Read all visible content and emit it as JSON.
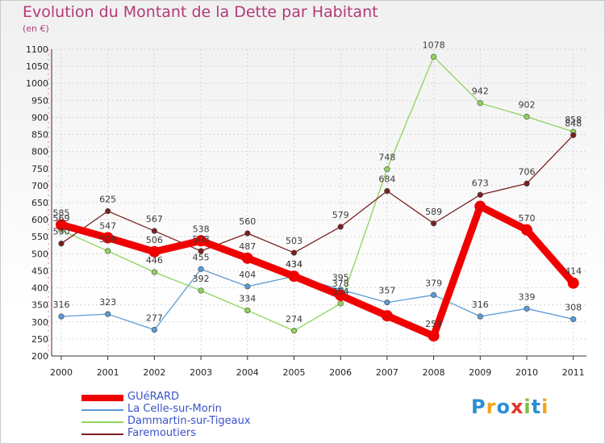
{
  "title": "Evolution du Montant de la Dette par Habitant",
  "subtitle": "(en €)",
  "logo_letters": [
    {
      "ch": "P",
      "color": "#2a8fd4"
    },
    {
      "ch": "r",
      "color": "#f2a51a"
    },
    {
      "ch": "o",
      "color": "#2a8fd4"
    },
    {
      "ch": "x",
      "color": "#e2342f"
    },
    {
      "ch": "i",
      "color": "#7bc142"
    },
    {
      "ch": "t",
      "color": "#2a8fd4"
    },
    {
      "ch": "i",
      "color": "#f2a51a"
    }
  ],
  "chart_data": {
    "type": "line",
    "title": "Evolution du Montant de la Dette par Habitant",
    "ylabel": "(en €)",
    "x": [
      "2000",
      "2001",
      "2002",
      "2003",
      "2004",
      "2005",
      "2006",
      "2007",
      "2008",
      "2009",
      "2010",
      "2011"
    ],
    "ylim": [
      200,
      1100
    ],
    "yticks": [
      200,
      250,
      300,
      350,
      400,
      450,
      500,
      550,
      600,
      650,
      700,
      750,
      800,
      850,
      900,
      950,
      1000,
      1050,
      1100
    ],
    "grid": true,
    "legend_position": "bottom-left",
    "series": [
      {
        "name": "GUéRARD",
        "color": "#f00000",
        "values": [
          585,
          547,
          506,
          538,
          487,
          434,
          378,
          318,
          259,
          639,
          570,
          414
        ],
        "labels": [
          "585",
          "547",
          "506",
          "538",
          "487",
          "434",
          "378",
          "",
          "259",
          "",
          "570",
          "414"
        ]
      },
      {
        "name": "La Celle-sur-Morin",
        "color": "#5b9bd5",
        "values": [
          316,
          323,
          277,
          455,
          404,
          434,
          395,
          357,
          379,
          316,
          339,
          308
        ],
        "labels": [
          "316",
          "323",
          "277",
          "455",
          "404",
          "434",
          "395",
          "357",
          "379",
          "316",
          "339",
          "308"
        ]
      },
      {
        "name": "Dammartin-sur-Tigeaux",
        "color": "#8fd35c",
        "values": [
          569,
          508,
          446,
          392,
          334,
          274,
          354,
          748,
          1078,
          942,
          902,
          858
        ],
        "labels": [
          "569",
          "508",
          "446",
          "392",
          "334",
          "274",
          "354",
          "748",
          "1078",
          "942",
          "902",
          "858"
        ]
      },
      {
        "name": "Faremoutiers",
        "color": "#7a1f1f",
        "values": [
          530,
          625,
          567,
          508,
          560,
          503,
          579,
          684,
          589,
          673,
          706,
          848
        ],
        "labels": [
          "530",
          "625",
          "567",
          "508",
          "560",
          "503",
          "579",
          "684",
          "589",
          "673",
          "706",
          "848"
        ]
      }
    ]
  }
}
